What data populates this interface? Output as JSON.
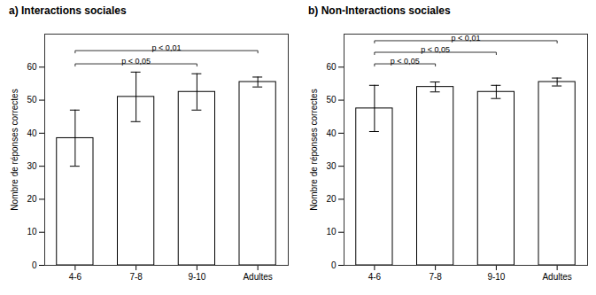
{
  "chart_data": [
    {
      "type": "bar",
      "title": "a) Interactions sociales",
      "categories": [
        "4-6",
        "7-8",
        "9-10",
        "Adultes"
      ],
      "values": [
        38.5,
        51.0,
        52.5,
        55.5
      ],
      "errors": [
        8.5,
        7.5,
        5.5,
        1.5
      ],
      "color": "#ffffff",
      "ylabel": "Nombre de réponses correctes",
      "ylim": [
        0,
        70
      ],
      "yticks": [
        0,
        10,
        20,
        30,
        40,
        50,
        60
      ],
      "grid": false,
      "annotations": [
        {
          "x1": "4-6",
          "x2": "9-10",
          "y": 61.0,
          "label": "p < 0,05"
        },
        {
          "x1": "4-6",
          "x2": "Adultes",
          "y": 65.0,
          "label": "p < 0,01"
        }
      ]
    },
    {
      "type": "bar",
      "title": "b) Non-Interactions sociales",
      "categories": [
        "4-6",
        "7-8",
        "9-10",
        "Adultes"
      ],
      "values": [
        47.5,
        54.0,
        52.5,
        55.5
      ],
      "errors": [
        7.0,
        1.5,
        2.0,
        1.2
      ],
      "color": "#ffffff",
      "ylabel": "Nombre de réponses correctes",
      "ylim": [
        0,
        70
      ],
      "yticks": [
        0,
        10,
        20,
        30,
        40,
        50,
        60
      ],
      "grid": false,
      "annotations": [
        {
          "x1": "4-6",
          "x2": "7-8",
          "y": 61.0,
          "label": "p < 0,05"
        },
        {
          "x1": "4-6",
          "x2": "9-10",
          "y": 64.5,
          "label": "p < 0,05"
        },
        {
          "x1": "4-6",
          "x2": "Adultes",
          "y": 68.0,
          "label": "p < 0,01"
        }
      ]
    }
  ]
}
